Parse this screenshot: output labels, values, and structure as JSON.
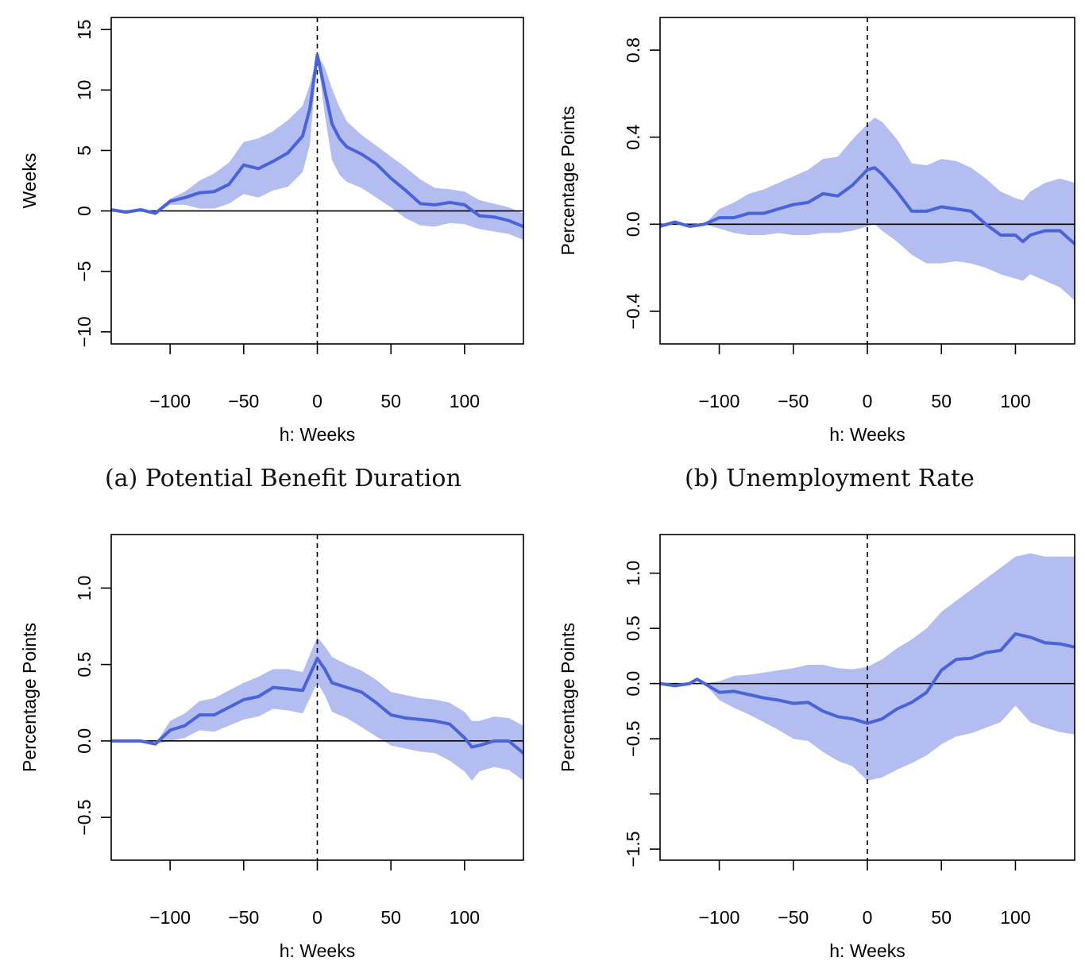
{
  "chart_data": [
    {
      "type": "line",
      "caption": "(a) Potential Benefit Duration",
      "xlabel": "h: Weeks",
      "ylabel": "Weeks",
      "xlim": [
        -140,
        140
      ],
      "ylim": [
        -11,
        16
      ],
      "x_ticks": [
        -100,
        -50,
        0,
        50,
        100
      ],
      "x_tick_labels": [
        "−100",
        "−50",
        "0",
        "50",
        "100"
      ],
      "y_ticks": [
        -10,
        -5,
        0,
        5,
        10,
        15
      ],
      "y_tick_labels": [
        "−10",
        "−5",
        "0",
        "5",
        "10",
        "15"
      ],
      "reference_lines": {
        "horizontal": 0,
        "vertical_dashed": 0
      },
      "colors": {
        "line": "#4a63d8",
        "band": "#b3bdf0"
      },
      "series": [
        {
          "x": [
            -140,
            -130,
            -120,
            -110,
            -100,
            -90,
            -80,
            -70,
            -60,
            -50,
            -40,
            -30,
            -20,
            -10,
            -5,
            0,
            5,
            10,
            15,
            20,
            30,
            40,
            50,
            60,
            70,
            80,
            90,
            100,
            110,
            120,
            130,
            140
          ],
          "values": [
            0.1,
            -0.1,
            0.1,
            -0.2,
            0.8,
            1.1,
            1.5,
            1.6,
            2.2,
            3.8,
            3.5,
            4.1,
            4.8,
            6.2,
            8.5,
            12.9,
            10.0,
            7.2,
            6.0,
            5.3,
            4.7,
            3.9,
            2.7,
            1.7,
            0.6,
            0.5,
            0.7,
            0.5,
            -0.4,
            -0.5,
            -0.8,
            -1.3
          ],
          "lower": [
            0.1,
            -0.1,
            0.1,
            -0.2,
            0.5,
            0.5,
            0.2,
            0.2,
            0.6,
            1.4,
            1.1,
            1.7,
            2.0,
            3.2,
            5.5,
            12.9,
            8.0,
            4.2,
            3.0,
            2.4,
            1.9,
            1.1,
            0.3,
            -0.6,
            -1.2,
            -1.3,
            -1.0,
            -1.1,
            -1.5,
            -1.7,
            -1.9,
            -2.4
          ],
          "upper": [
            0.1,
            -0.1,
            0.1,
            -0.2,
            1.0,
            1.6,
            2.5,
            3.1,
            4.0,
            5.7,
            6.0,
            6.6,
            7.5,
            8.7,
            10.5,
            12.9,
            11.9,
            10.1,
            8.6,
            7.4,
            6.3,
            5.4,
            4.5,
            3.6,
            2.6,
            1.9,
            1.8,
            1.6,
            0.9,
            0.6,
            0.3,
            -0.2
          ]
        }
      ]
    },
    {
      "type": "line",
      "caption": "(b) Unemployment Rate",
      "xlabel": "h: Weeks",
      "ylabel": "Percentage Points",
      "xlim": [
        -140,
        140
      ],
      "ylim": [
        -0.55,
        0.95
      ],
      "x_ticks": [
        -100,
        -50,
        0,
        50,
        100
      ],
      "x_tick_labels": [
        "−100",
        "−50",
        "0",
        "50",
        "100"
      ],
      "y_ticks": [
        -0.4,
        0.0,
        0.4,
        0.8
      ],
      "y_tick_labels": [
        "−0.4",
        "0.0",
        "0.4",
        "0.8"
      ],
      "reference_lines": {
        "horizontal": 0,
        "vertical_dashed": 0
      },
      "colors": {
        "line": "#4a63d8",
        "band": "#b3bdf0"
      },
      "series": [
        {
          "x": [
            -140,
            -130,
            -120,
            -110,
            -100,
            -90,
            -80,
            -70,
            -60,
            -50,
            -40,
            -30,
            -20,
            -10,
            0,
            5,
            10,
            20,
            30,
            40,
            50,
            60,
            70,
            80,
            90,
            100,
            105,
            110,
            120,
            130,
            140
          ],
          "values": [
            -0.01,
            0.01,
            -0.01,
            0.0,
            0.03,
            0.03,
            0.05,
            0.05,
            0.07,
            0.09,
            0.1,
            0.14,
            0.13,
            0.18,
            0.25,
            0.26,
            0.23,
            0.15,
            0.06,
            0.06,
            0.08,
            0.07,
            0.06,
            0.0,
            -0.05,
            -0.05,
            -0.08,
            -0.05,
            -0.03,
            -0.03,
            -0.09
          ],
          "lower": [
            -0.01,
            0.01,
            -0.01,
            0.0,
            -0.02,
            -0.04,
            -0.05,
            -0.05,
            -0.04,
            -0.05,
            -0.05,
            -0.04,
            -0.04,
            -0.03,
            -0.01,
            0.0,
            -0.03,
            -0.08,
            -0.14,
            -0.18,
            -0.18,
            -0.17,
            -0.18,
            -0.2,
            -0.23,
            -0.25,
            -0.26,
            -0.23,
            -0.26,
            -0.29,
            -0.35
          ],
          "upper": [
            -0.01,
            0.01,
            -0.01,
            0.0,
            0.07,
            0.1,
            0.14,
            0.16,
            0.19,
            0.22,
            0.25,
            0.3,
            0.31,
            0.39,
            0.46,
            0.49,
            0.47,
            0.39,
            0.28,
            0.27,
            0.3,
            0.29,
            0.26,
            0.21,
            0.15,
            0.12,
            0.11,
            0.15,
            0.19,
            0.21,
            0.19
          ]
        }
      ]
    },
    {
      "type": "line",
      "caption": "",
      "xlabel": "h: Weeks",
      "ylabel": "Percentage Points",
      "xlim": [
        -140,
        140
      ],
      "ylim": [
        -0.78,
        1.35
      ],
      "x_ticks": [
        -100,
        -50,
        0,
        50,
        100
      ],
      "x_tick_labels": [
        "−100",
        "−50",
        "0",
        "50",
        "100"
      ],
      "y_ticks": [
        -0.5,
        0.0,
        0.5,
        1.0
      ],
      "y_tick_labels": [
        "−0.5",
        "0.0",
        "0.5",
        "1.0"
      ],
      "reference_lines": {
        "horizontal": 0,
        "vertical_dashed": 0
      },
      "colors": {
        "line": "#4a63d8",
        "band": "#b3bdf0"
      },
      "series": [
        {
          "x": [
            -140,
            -130,
            -120,
            -110,
            -100,
            -90,
            -80,
            -70,
            -60,
            -50,
            -40,
            -30,
            -20,
            -10,
            0,
            5,
            10,
            20,
            30,
            40,
            50,
            60,
            70,
            80,
            90,
            100,
            105,
            110,
            120,
            130,
            140
          ],
          "values": [
            0.0,
            0.0,
            0.0,
            -0.02,
            0.07,
            0.1,
            0.17,
            0.17,
            0.22,
            0.27,
            0.29,
            0.35,
            0.34,
            0.33,
            0.54,
            0.47,
            0.38,
            0.35,
            0.32,
            0.25,
            0.17,
            0.15,
            0.14,
            0.13,
            0.11,
            0.02,
            -0.04,
            -0.03,
            0.0,
            0.0,
            -0.08
          ],
          "lower": [
            0.0,
            0.0,
            0.0,
            -0.02,
            0.0,
            0.02,
            0.07,
            0.06,
            0.1,
            0.14,
            0.16,
            0.21,
            0.2,
            0.18,
            0.38,
            0.3,
            0.19,
            0.15,
            0.09,
            0.03,
            -0.03,
            -0.05,
            -0.07,
            -0.08,
            -0.13,
            -0.2,
            -0.26,
            -0.2,
            -0.17,
            -0.19,
            -0.26
          ],
          "upper": [
            0.0,
            0.0,
            0.0,
            -0.02,
            0.13,
            0.18,
            0.26,
            0.28,
            0.33,
            0.38,
            0.42,
            0.47,
            0.47,
            0.45,
            0.68,
            0.62,
            0.55,
            0.5,
            0.46,
            0.4,
            0.32,
            0.3,
            0.28,
            0.27,
            0.25,
            0.19,
            0.13,
            0.13,
            0.16,
            0.15,
            0.1
          ]
        }
      ]
    },
    {
      "type": "line",
      "caption": "",
      "xlabel": "h: Weeks",
      "ylabel": "Percentage Points",
      "xlim": [
        -140,
        140
      ],
      "ylim": [
        -1.6,
        1.35
      ],
      "x_ticks": [
        -100,
        -50,
        0,
        50,
        100
      ],
      "x_tick_labels": [
        "−100",
        "−50",
        "0",
        "50",
        "100"
      ],
      "y_ticks": [
        -1.5,
        -0.5,
        0.5,
        1.0
      ],
      "y_tick_labels": [
        "−1.5",
        "−0.5",
        "0.5",
        "1.0"
      ],
      "extra_y_ticks": [
        -1.0,
        0.0
      ],
      "extra_y_tick_labels": [
        "",
        "0.0"
      ],
      "reference_lines": {
        "horizontal": 0,
        "vertical_dashed": 0
      },
      "colors": {
        "line": "#4a63d8",
        "band": "#b3bdf0"
      },
      "series": [
        {
          "x": [
            -140,
            -130,
            -120,
            -115,
            -110,
            -100,
            -90,
            -80,
            -70,
            -60,
            -50,
            -40,
            -30,
            -20,
            -10,
            0,
            10,
            20,
            30,
            40,
            50,
            60,
            70,
            80,
            90,
            100,
            110,
            120,
            130,
            140
          ],
          "values": [
            0.0,
            -0.02,
            0.0,
            0.04,
            0.0,
            -0.08,
            -0.07,
            -0.1,
            -0.13,
            -0.15,
            -0.18,
            -0.17,
            -0.25,
            -0.3,
            -0.32,
            -0.36,
            -0.32,
            -0.23,
            -0.17,
            -0.08,
            0.12,
            0.22,
            0.23,
            0.28,
            0.3,
            0.45,
            0.42,
            0.37,
            0.36,
            0.33
          ],
          "lower": [
            0.0,
            -0.02,
            0.0,
            0.04,
            0.0,
            -0.15,
            -0.22,
            -0.28,
            -0.35,
            -0.42,
            -0.5,
            -0.52,
            -0.62,
            -0.7,
            -0.75,
            -0.88,
            -0.85,
            -0.78,
            -0.72,
            -0.65,
            -0.55,
            -0.48,
            -0.45,
            -0.4,
            -0.35,
            -0.2,
            -0.35,
            -0.4,
            -0.44,
            -0.46
          ],
          "upper": [
            0.0,
            -0.02,
            0.0,
            0.04,
            0.0,
            0.02,
            0.07,
            0.08,
            0.1,
            0.12,
            0.14,
            0.17,
            0.17,
            0.14,
            0.13,
            0.15,
            0.22,
            0.32,
            0.4,
            0.5,
            0.65,
            0.75,
            0.85,
            0.95,
            1.05,
            1.15,
            1.18,
            1.15,
            1.15,
            1.15
          ]
        }
      ]
    }
  ]
}
